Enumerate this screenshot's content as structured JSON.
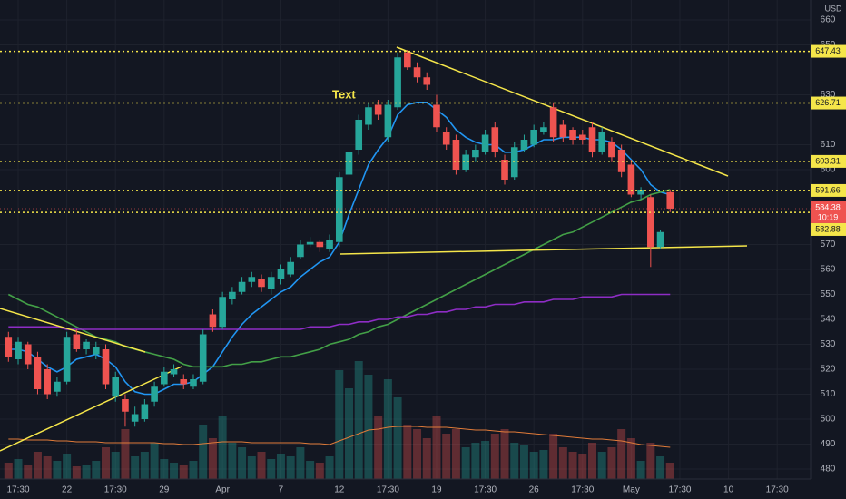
{
  "header": {
    "currency": "USD"
  },
  "chart_data": {
    "type": "candlestick",
    "annotation": "Text",
    "categories": [
      null,
      "17:30",
      null,
      null,
      null,
      null,
      "22",
      null,
      null,
      null,
      null,
      "17:30",
      null,
      null,
      null,
      null,
      "29",
      null,
      null,
      null,
      null,
      null,
      "Apr",
      null,
      null,
      null,
      null,
      null,
      "7",
      null,
      null,
      null,
      null,
      null,
      "12",
      null,
      null,
      null,
      null,
      "17:30",
      null,
      null,
      null,
      null,
      "19",
      null,
      null,
      null,
      null,
      "17:30",
      null,
      null,
      null,
      null,
      "26",
      null,
      null,
      null,
      null,
      "17:30",
      null,
      null,
      null,
      null,
      "May",
      null,
      null,
      null,
      null,
      "17:30",
      null,
      null,
      null,
      null,
      "10",
      null,
      null,
      null,
      null,
      "17:30",
      null,
      null,
      null
    ],
    "open": [
      533,
      524,
      530,
      525,
      520,
      511,
      515,
      534,
      528,
      526,
      528,
      509,
      508,
      499,
      500,
      507,
      514,
      518,
      516,
      513,
      515,
      542,
      537,
      548,
      551,
      555,
      556,
      552,
      556,
      558,
      565,
      570,
      571,
      568,
      571,
      598,
      608,
      618,
      626,
      613,
      625,
      647,
      641,
      637,
      626,
      615,
      612,
      600,
      605,
      607,
      617,
      604,
      597,
      608,
      610,
      615,
      625,
      618,
      616,
      614,
      617,
      607,
      611,
      608,
      602,
      590,
      589,
      569,
      591,
      null,
      null,
      null,
      null,
      null,
      null,
      null,
      null,
      null,
      null,
      null,
      null,
      null,
      null
    ],
    "high": [
      535,
      533,
      531,
      527,
      522,
      517,
      535,
      536,
      532,
      531,
      530,
      519,
      510,
      505,
      508,
      515,
      521,
      522,
      518,
      518,
      536,
      544,
      551,
      553,
      557,
      559,
      558,
      559,
      562,
      565,
      572,
      573,
      572,
      574,
      599,
      609,
      622,
      627,
      628,
      628,
      647,
      648,
      643,
      639,
      630,
      617,
      614,
      608,
      610,
      616,
      619,
      606,
      611,
      614,
      618,
      619,
      627,
      620,
      617,
      616,
      619,
      617,
      613,
      610,
      604,
      593,
      590,
      576,
      592,
      null,
      null,
      null,
      null,
      null,
      null,
      null,
      null,
      null,
      null,
      null,
      null,
      null,
      null
    ],
    "low": [
      523,
      522,
      520,
      510,
      508,
      509,
      514,
      527,
      526,
      524,
      512,
      507,
      497,
      497,
      499,
      505,
      513,
      517,
      512,
      512,
      514,
      535,
      536,
      546,
      550,
      553,
      551,
      550,
      554,
      557,
      564,
      569,
      567,
      567,
      569,
      596,
      606,
      616,
      620,
      611,
      624,
      640,
      635,
      632,
      615,
      608,
      598,
      599,
      603,
      606,
      605,
      594,
      596,
      607,
      609,
      614,
      611,
      611,
      610,
      610,
      605,
      606,
      603,
      597,
      589,
      588,
      561,
      568,
      583,
      null,
      null,
      null,
      null,
      null,
      null,
      null,
      null,
      null,
      null,
      null,
      null,
      null,
      null
    ],
    "close": [
      525,
      531,
      522,
      512,
      510,
      515,
      533,
      528,
      531,
      529,
      514,
      517,
      503,
      502,
      506,
      513,
      519,
      520,
      514,
      516,
      534,
      537,
      549,
      551,
      555,
      557,
      553,
      557,
      560,
      563,
      570,
      571,
      569,
      572,
      597,
      607,
      620,
      625,
      622,
      626,
      645,
      641,
      637,
      634,
      617,
      610,
      600,
      606,
      608,
      614,
      607,
      596,
      609,
      612,
      616,
      617,
      613,
      613,
      612,
      612,
      607,
      615,
      605,
      599,
      590,
      592,
      569,
      575,
      584.38,
      null,
      null,
      null,
      null,
      null,
      null,
      null,
      null,
      null,
      null,
      null,
      null,
      null,
      null
    ],
    "volume": [
      18,
      22,
      15,
      30,
      25,
      20,
      28,
      14,
      16,
      20,
      35,
      30,
      55,
      25,
      30,
      40,
      22,
      18,
      15,
      20,
      60,
      45,
      70,
      40,
      35,
      25,
      30,
      22,
      28,
      25,
      35,
      20,
      18,
      25,
      120,
      100,
      130,
      115,
      70,
      110,
      90,
      60,
      55,
      45,
      70,
      50,
      55,
      35,
      40,
      42,
      50,
      55,
      40,
      38,
      30,
      32,
      50,
      35,
      30,
      28,
      40,
      30,
      35,
      55,
      45,
      20,
      40,
      25,
      18,
      null,
      null,
      null,
      null,
      null,
      null,
      null,
      null,
      null,
      null,
      null,
      null,
      null,
      null
    ],
    "volume_ma": {
      "color": "#e07b39",
      "values": [
        44,
        44,
        43,
        43,
        43,
        42,
        42,
        41,
        41,
        41,
        40,
        40,
        40,
        40,
        40,
        40,
        39,
        39,
        38,
        38,
        39,
        40,
        41,
        41,
        41,
        40,
        40,
        40,
        40,
        40,
        40,
        39,
        39,
        38,
        42,
        46,
        50,
        54,
        55,
        57,
        58,
        58,
        58,
        57,
        57,
        57,
        56,
        55,
        54,
        54,
        53,
        52,
        52,
        51,
        50,
        49,
        48,
        47,
        46,
        45,
        44,
        44,
        43,
        42,
        40,
        38,
        37,
        36,
        35,
        null,
        null,
        null,
        null,
        null,
        null,
        null,
        null,
        null,
        null,
        null,
        null,
        null,
        null
      ]
    },
    "ma_lines": [
      {
        "color": "#2196f3",
        "values": [
          528,
          528,
          527,
          524,
          521,
          519,
          521,
          524,
          525,
          526,
          524,
          521,
          515,
          511,
          510,
          510,
          512,
          514,
          514,
          515,
          518,
          521,
          527,
          533,
          538,
          542,
          545,
          548,
          551,
          553,
          557,
          560,
          563,
          565,
          571,
          582,
          592,
          602,
          608,
          613,
          622,
          626,
          627,
          627,
          624,
          621,
          616,
          613,
          611,
          610,
          610,
          607,
          607,
          608,
          610,
          612,
          612,
          613,
          613,
          613,
          612,
          612,
          611,
          608,
          604,
          600,
          594,
          591,
          590,
          null,
          null,
          null,
          null,
          null,
          null,
          null,
          null,
          null,
          null,
          null,
          null,
          null,
          null
        ]
      },
      {
        "color": "#43a047",
        "values": [
          550,
          548,
          546,
          545,
          543,
          541,
          539,
          537,
          535,
          533,
          532,
          531,
          529,
          528,
          527,
          526,
          525,
          524,
          522,
          521,
          521,
          521,
          521,
          522,
          522,
          523,
          523,
          524,
          525,
          525,
          526,
          527,
          528,
          530,
          531,
          532,
          534,
          535,
          537,
          538,
          540,
          542,
          544,
          546,
          548,
          550,
          552,
          554,
          556,
          558,
          560,
          562,
          564,
          566,
          568,
          570,
          572,
          574,
          575,
          577,
          579,
          581,
          583,
          585,
          587,
          588,
          590,
          591,
          592,
          null,
          null,
          null,
          null,
          null,
          null,
          null,
          null,
          null,
          null,
          null,
          null,
          null,
          null
        ]
      },
      {
        "color": "#8e2dc5",
        "values": [
          537,
          537,
          537,
          537,
          537,
          537,
          536,
          536,
          536,
          536,
          536,
          536,
          536,
          536,
          536,
          536,
          536,
          536,
          536,
          536,
          536,
          536,
          536,
          536,
          536,
          536,
          536,
          536,
          536,
          536,
          536,
          537,
          537,
          537,
          538,
          538,
          539,
          539,
          540,
          540,
          541,
          541,
          542,
          542,
          543,
          543,
          544,
          544,
          545,
          545,
          546,
          546,
          546,
          547,
          547,
          547,
          548,
          548,
          548,
          549,
          549,
          549,
          549,
          550,
          550,
          550,
          550,
          550,
          550,
          null,
          null,
          null,
          null,
          null,
          null,
          null,
          null,
          null,
          null,
          null,
          null,
          null,
          null
        ]
      }
    ],
    "up_color": "#26a69a",
    "down_color": "#ef5350",
    "ylim": [
      480,
      660
    ],
    "yticks": [
      480,
      490,
      500,
      510,
      520,
      530,
      540,
      550,
      560,
      570,
      600,
      610,
      630,
      650,
      660
    ],
    "grid": true,
    "levels": [
      647.43,
      626.71,
      603.31,
      591.66,
      582.88
    ],
    "level_color": "#f5e64a",
    "last_price": 584.38,
    "countdown": "10:19"
  }
}
